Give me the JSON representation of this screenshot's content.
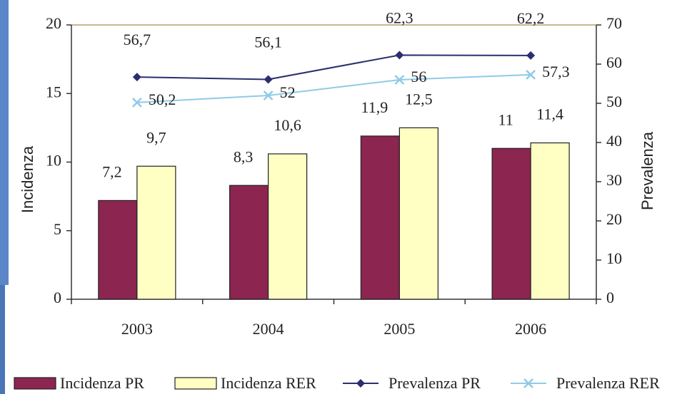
{
  "chart_data": {
    "type": "bar",
    "categories": [
      "2003",
      "2004",
      "2005",
      "2006"
    ],
    "series": [
      {
        "name": "Incidenza PR",
        "type": "bar",
        "color": "#8c2550",
        "values": [
          7.2,
          8.3,
          11.9,
          11
        ],
        "value_labels": [
          "7,2",
          "8,3",
          "11,9",
          "11"
        ]
      },
      {
        "name": "Incidenza RER",
        "type": "bar",
        "color": "#ffffc4",
        "values": [
          9.7,
          10.6,
          12.5,
          11.4
        ],
        "value_labels": [
          "9,7",
          "10,6",
          "12,5",
          "11,4"
        ]
      },
      {
        "name": "Prevalenza PR",
        "type": "line",
        "axis": "y2",
        "color": "#2b2f6e",
        "values": [
          56.7,
          56.1,
          62.3,
          62.2
        ],
        "value_labels": [
          "56,7",
          "56,1",
          "62,3",
          "62,2"
        ]
      },
      {
        "name": "Prevalenza RER",
        "type": "line",
        "axis": "y2",
        "color": "#8fcbe6",
        "values": [
          50.2,
          52,
          56,
          57.3
        ],
        "value_labels": [
          "50,2",
          "52",
          "56",
          "57,3"
        ]
      }
    ],
    "ylabel": "Incidenza",
    "y2label": "Prevalenza",
    "ylim": [
      0,
      20
    ],
    "yticks": [
      0,
      5,
      10,
      15,
      20
    ],
    "y2lim": [
      0,
      70
    ],
    "y2ticks": [
      0,
      10,
      20,
      30,
      40,
      50,
      60,
      70
    ],
    "legend": "bottom"
  }
}
